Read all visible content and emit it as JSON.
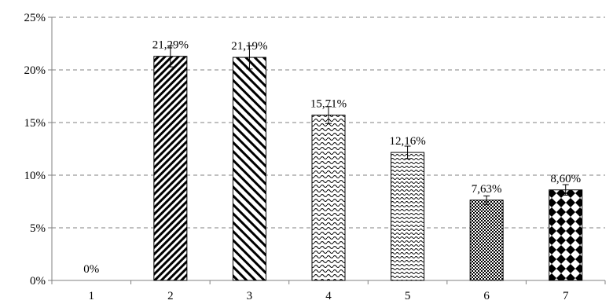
{
  "chart_data": {
    "type": "bar",
    "categories": [
      "1",
      "2",
      "3",
      "4",
      "5",
      "6",
      "7"
    ],
    "values": [
      0,
      21.29,
      21.19,
      15.71,
      12.16,
      7.63,
      8.6
    ],
    "errors": [
      0,
      1.0,
      1.1,
      0.8,
      0.6,
      0.4,
      0.5
    ],
    "data_labels": [
      "0%",
      "21,29%",
      "21,19%",
      "15,71%",
      "12,16%",
      "7,63%",
      "8,60%"
    ],
    "patterns": [
      "none",
      "dense-diagonal",
      "wide-diagonal",
      "wave",
      "wave-small",
      "checker",
      "diamond"
    ],
    "ylim": [
      0,
      25
    ],
    "yticks": [
      0,
      5,
      10,
      15,
      20,
      25
    ],
    "ytick_labels": [
      "0%",
      "5%",
      "10%",
      "15%",
      "20%",
      "25%"
    ],
    "grid": true,
    "grid_style": "dashed",
    "legend": false,
    "title": "",
    "xlabel": "",
    "ylabel": "",
    "colors": {
      "bar_stroke": "#000000",
      "grid": "#808080",
      "axis": "#808080"
    }
  }
}
